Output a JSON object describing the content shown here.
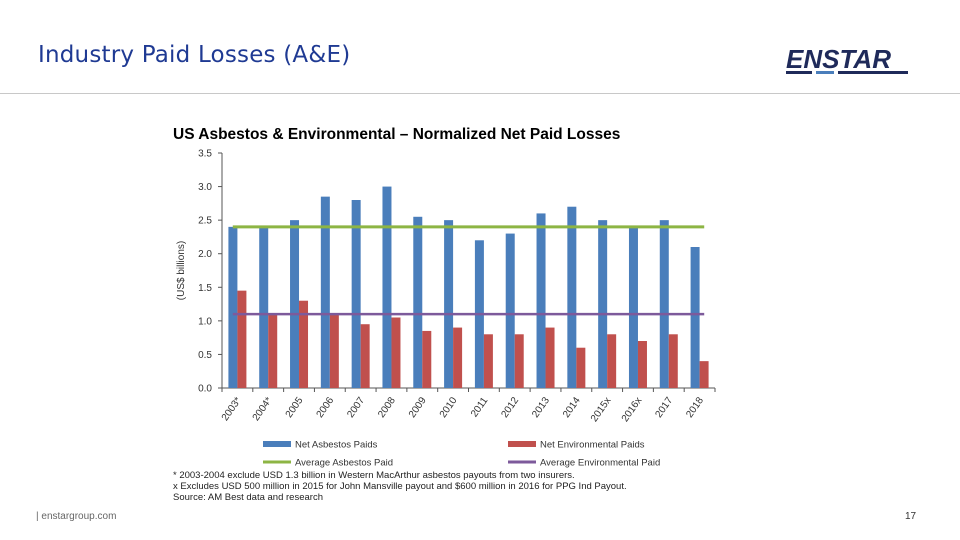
{
  "slide": {
    "title": "Industry Paid Losses (A&E)",
    "logo_text": "ENSTAR",
    "footer_site": "|  enstargroup.com",
    "page_number": "17"
  },
  "colors": {
    "title": "#1f3a93",
    "logo": "#1f2a5a",
    "asbestos": "#4a7ebb",
    "environmental": "#c0504d",
    "avg_asbestos": "#8db544",
    "avg_environmental": "#7d5a9b"
  },
  "chart_data": {
    "type": "bar",
    "title": "US Asbestos & Environmental – Normalized Net Paid Losses",
    "ylabel": "(US$ billions)",
    "ylim": [
      0,
      3.5
    ],
    "yticks": [
      "0.0",
      "0.5",
      "1.0",
      "1.5",
      "2.0",
      "2.5",
      "3.0",
      "3.5"
    ],
    "categories": [
      "2003*",
      "2004*",
      "2005",
      "2006",
      "2007",
      "2008",
      "2009",
      "2010",
      "2011",
      "2012",
      "2013",
      "2014",
      "2015x",
      "2016x",
      "2017",
      "2018"
    ],
    "series": [
      {
        "name": "Net Asbestos Paids",
        "values": [
          2.4,
          2.4,
          2.5,
          2.85,
          2.8,
          3.0,
          2.55,
          2.5,
          2.2,
          2.3,
          2.6,
          2.7,
          2.5,
          2.4,
          2.5,
          2.1
        ]
      },
      {
        "name": "Net Environmental Paids",
        "values": [
          1.45,
          1.1,
          1.3,
          1.1,
          0.95,
          1.05,
          0.85,
          0.9,
          0.8,
          0.8,
          0.9,
          0.6,
          0.8,
          0.7,
          0.8,
          0.4
        ]
      }
    ],
    "lines": [
      {
        "name": "Average Asbestos Paid",
        "value": 2.4
      },
      {
        "name": "Average Environmental Paid",
        "value": 1.1
      }
    ],
    "grid": false,
    "legend_position": "bottom"
  },
  "notes": [
    "* 2003-2004 exclude USD 1.3 billion in Western MacArthur asbestos payouts from two insurers.",
    "x Excludes USD 500 million in 2015 for John Mansville payout and $600 million in 2016 for PPG Ind Payout.",
    "Source: AM Best data and research"
  ]
}
